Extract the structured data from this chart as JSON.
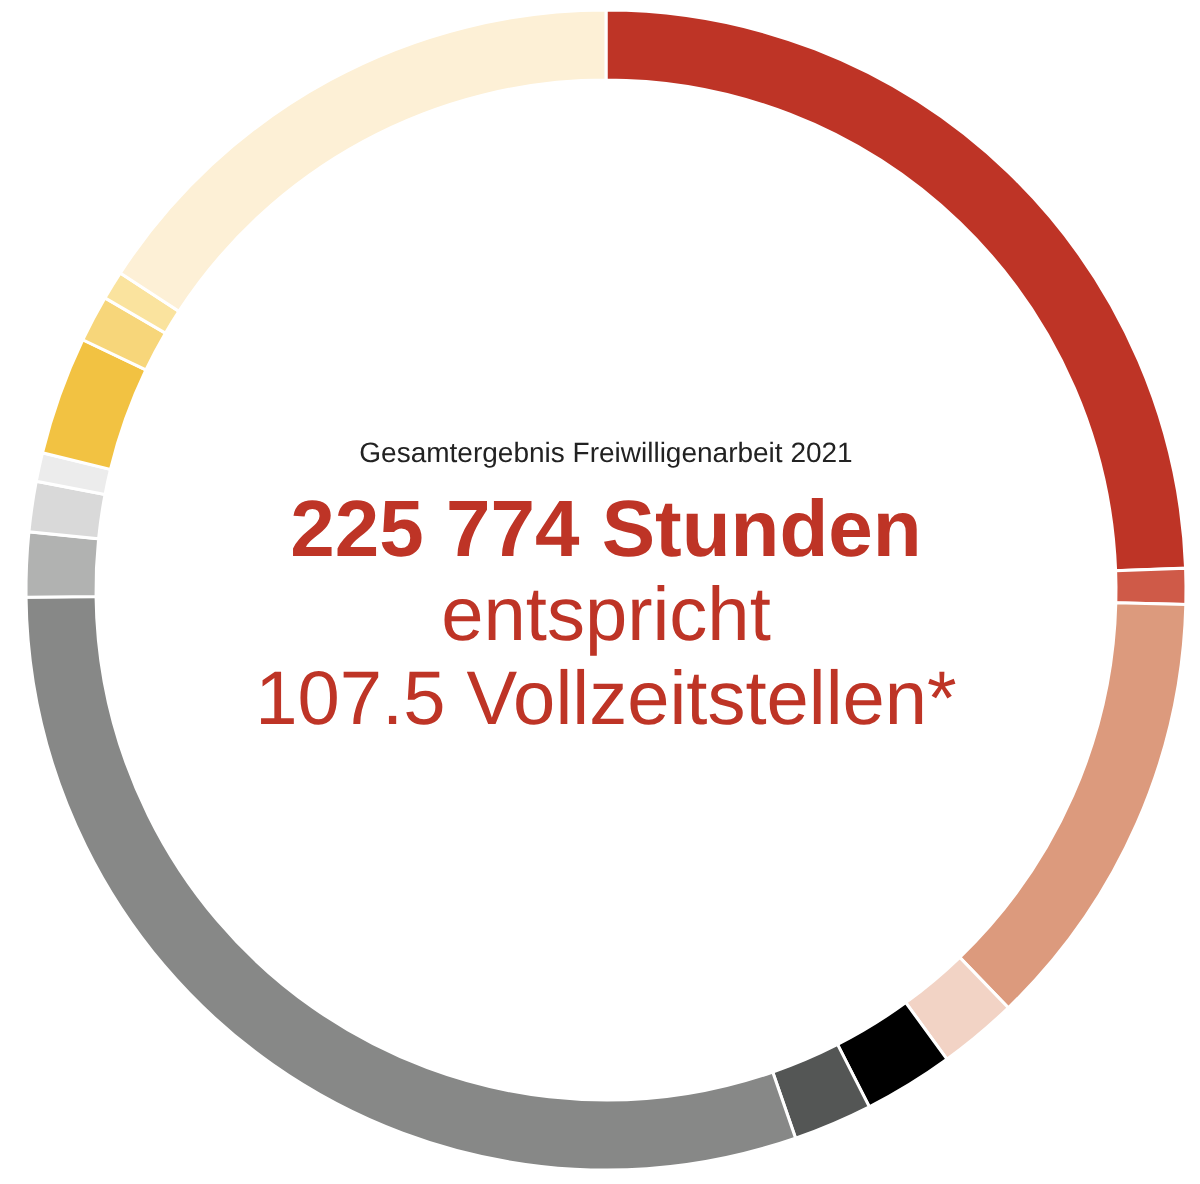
{
  "chart_data": {
    "type": "donut",
    "title": "Gesamtergebnis Freiwilligenarbeit 2021",
    "annotations": [
      "225 774 Stunden",
      "entspricht",
      "107.5 Vollzeitstellen*"
    ],
    "categories": [
      null,
      null,
      null,
      null,
      null,
      null,
      null,
      null,
      null,
      null,
      null,
      null,
      null,
      null
    ],
    "values": [
      24.4,
      1.0,
      12.4,
      2.2,
      2.5,
      2.2,
      30.1,
      1.8,
      1.4,
      0.8,
      3.3,
      1.3,
      0.8,
      15.8
    ],
    "colors": [
      "#be3426",
      "#cf5a48",
      "#dc9a7d",
      "#f2d3c5",
      "#000000",
      "#545655",
      "#878887",
      "#b1b2b1",
      "#d9d9d9",
      "#ececec",
      "#f2c242",
      "#f7d67a",
      "#fae39e",
      "#fdf0d6"
    ]
  }
}
